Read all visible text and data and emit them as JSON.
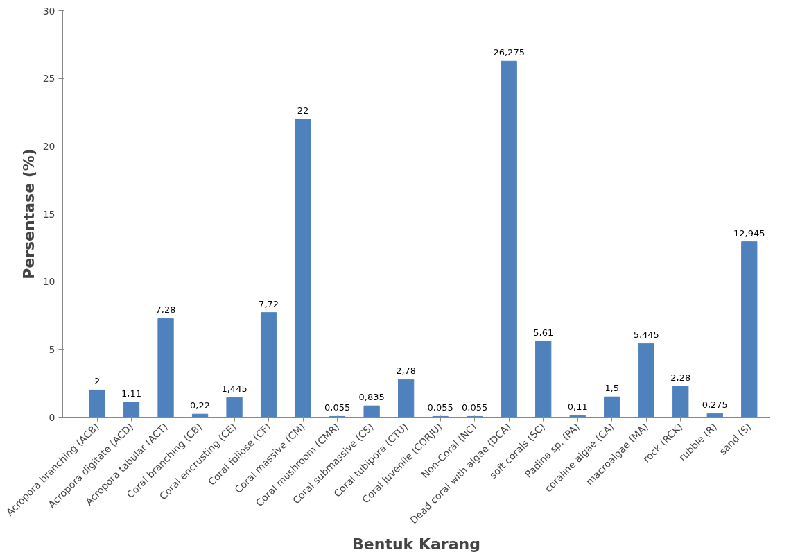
{
  "chart_data": {
    "type": "bar",
    "xlabel": "Bentuk Karang",
    "ylabel": "Persentase (%)",
    "categories": [
      "Acropora branching (ACB)",
      "Acropora digitate (ACD)",
      "Acropora tabular (ACT)",
      "Coral branching (CB)",
      "Coral encrusting (CE)",
      "Coral foliose (CF)",
      "Coral massive (CM)",
      "Coral mushroom (CMR)",
      "Coral submassive (CS)",
      "Coral tubipora (CTU)",
      "Coral juvenile (CORJU)",
      "Non-Coral (NC)",
      "Dead coral with algae (DCA)",
      "soft corals (SC)",
      "Padina sp. (PA)",
      "coraline algae (CA)",
      "macroalgae (MA)",
      "rock (RCK)",
      "rubble (R)",
      "sand (S)"
    ],
    "values": [
      2,
      1.11,
      7.28,
      0.22,
      1.445,
      7.72,
      22,
      0.055,
      0.835,
      2.78,
      0.055,
      0.055,
      26.275,
      5.61,
      0.11,
      1.5,
      5.445,
      2.28,
      0.275,
      12.945
    ],
    "value_labels": [
      "2",
      "1,11",
      "7,28",
      "0,22",
      "1,445",
      "7,72",
      "22",
      "0,055",
      "0,835",
      "2,78",
      "0,055",
      "0,055",
      "26,275",
      "5,61",
      "0,11",
      "1,5",
      "5,445",
      "2,28",
      "0,275",
      "12,945"
    ],
    "color": "#4f81bd",
    "ylim": [
      0,
      30
    ],
    "yticks": [
      0,
      5,
      10,
      15,
      20,
      25,
      30
    ],
    "grid": false
  }
}
